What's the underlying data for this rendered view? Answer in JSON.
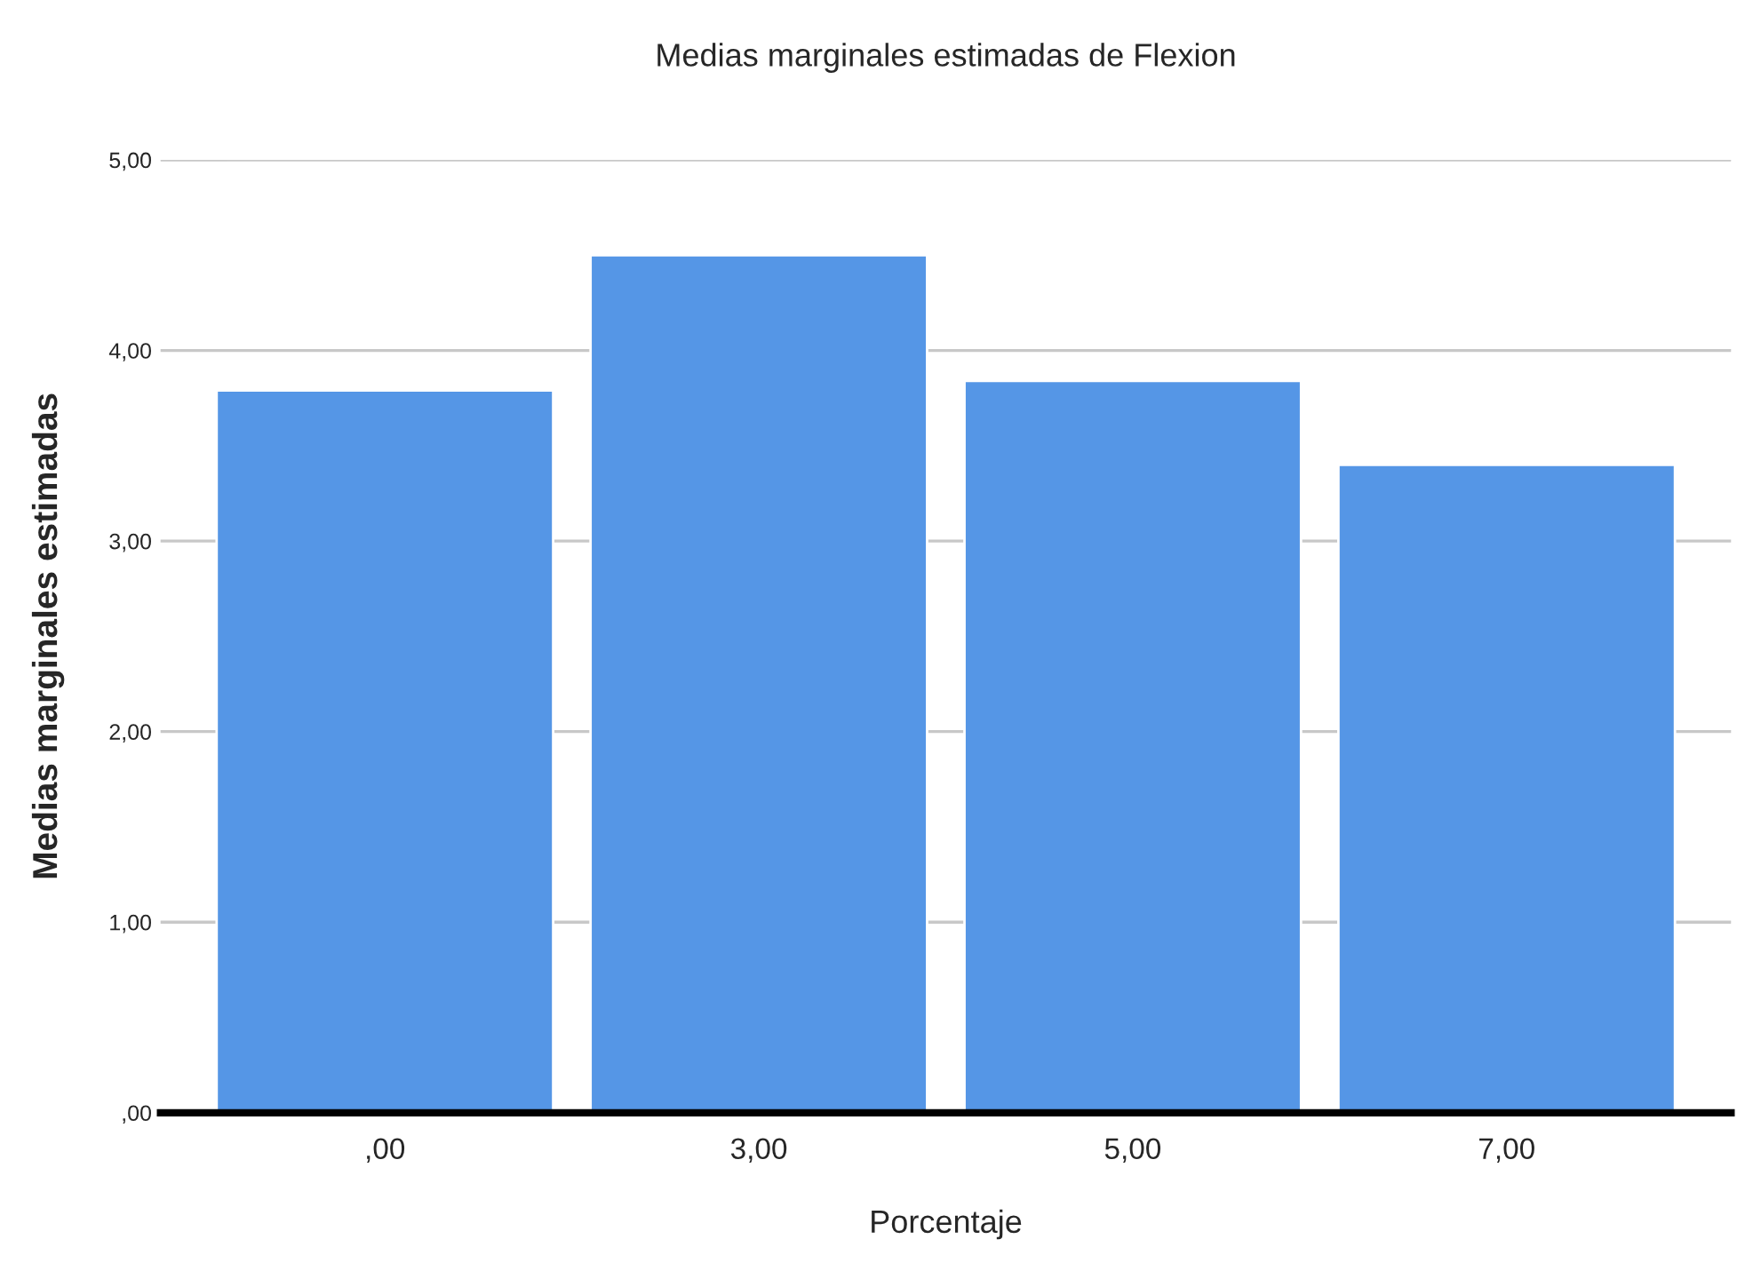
{
  "chart_data": {
    "type": "bar",
    "title": "Medias marginales estimadas de Flexion",
    "xlabel": "Porcentaje",
    "ylabel": "Medias marginales estimadas",
    "categories": [
      ",00",
      "3,00",
      "5,00",
      "7,00"
    ],
    "values": [
      3.79,
      4.5,
      3.84,
      3.4
    ],
    "color": "#5596e6",
    "ylim": [
      0,
      5
    ],
    "yticks": [
      {
        "value": 0,
        "label": ",00"
      },
      {
        "value": 1,
        "label": "1,00"
      },
      {
        "value": 2,
        "label": "2,00"
      },
      {
        "value": 3,
        "label": "3,00"
      },
      {
        "value": 4,
        "label": "4,00"
      },
      {
        "value": 5,
        "label": "5,00"
      }
    ],
    "grid": "y"
  }
}
